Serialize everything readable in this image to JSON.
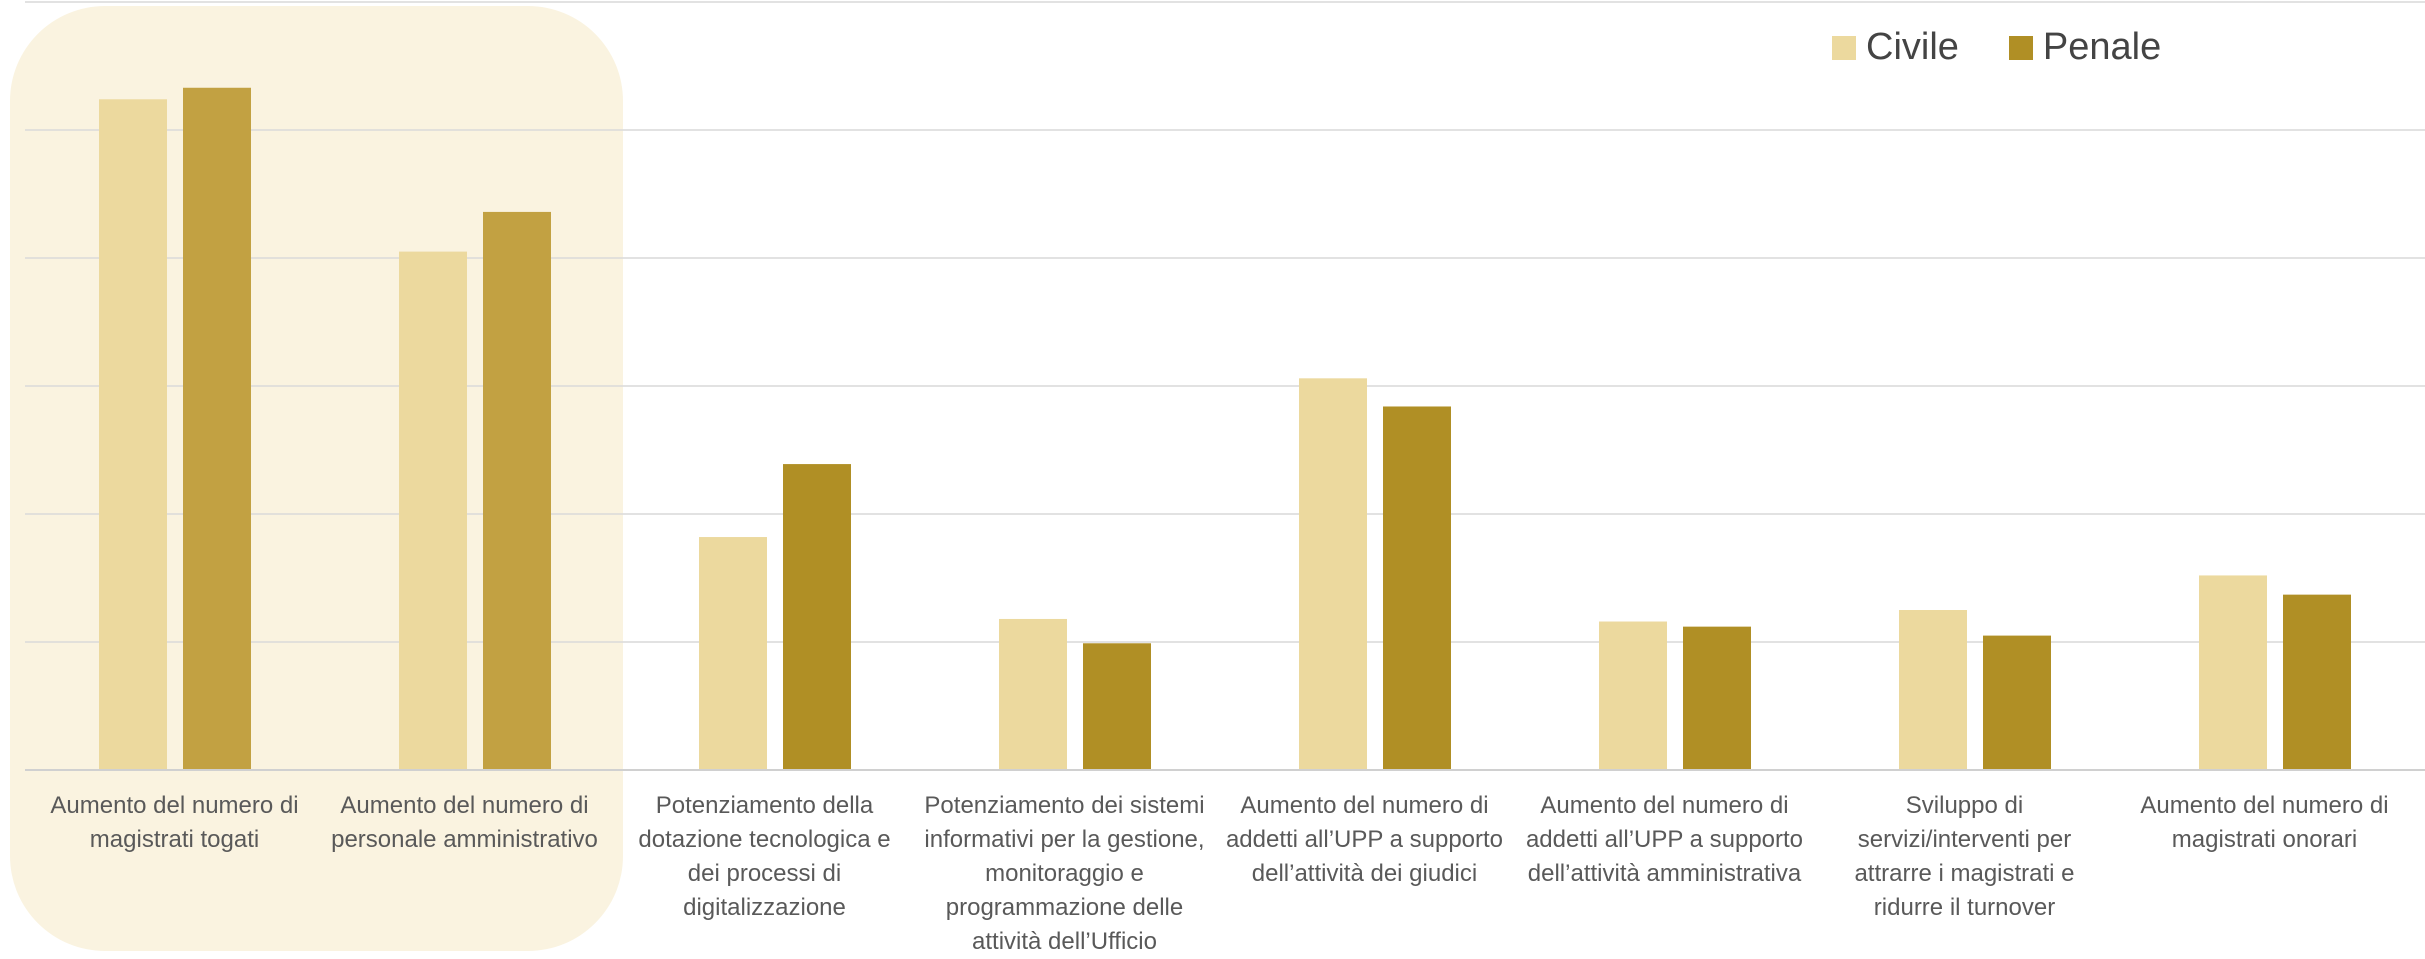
{
  "colors": {
    "civile": "#ecd99e",
    "penale": "#b08f25",
    "highlight": "#faf3e0",
    "grid": "#d9d9d9",
    "axis": "#d0d0d0"
  },
  "legend": {
    "civile_label": "Civile",
    "penale_label": "Penale"
  },
  "chart_data": {
    "type": "bar",
    "categories": [
      "Aumento del numero di magistrati togati",
      "Aumento del numero di personale amministrativo",
      "Potenziamento della dotazione tecnologica e dei processi di digitalizzazione",
      "Potenziamento dei sistemi informativi per la gestione, monitoraggio e programmazione delle attività dell’Ufficio",
      "Aumento del numero di addetti all’UPP a supporto dell’attività dei giudici",
      "Aumento del numero di addetti all’UPP a supporto dell’attività amministrativa",
      "Sviluppo di servizi/interventi per attrarre i magistrati e ridurre il turnover",
      "Aumento del numero di magistrati onorari"
    ],
    "series": [
      {
        "name": "Civile",
        "values": [
          5.24,
          4.05,
          1.82,
          1.18,
          3.06,
          1.16,
          1.25,
          1.52
        ]
      },
      {
        "name": "Penale",
        "values": [
          5.33,
          4.36,
          2.39,
          0.99,
          2.84,
          1.12,
          1.05,
          1.37
        ]
      }
    ],
    "ylim": [
      0,
      6
    ],
    "grid": true,
    "legend_position": "top-right",
    "highlighted_categories": [
      0,
      1
    ]
  }
}
